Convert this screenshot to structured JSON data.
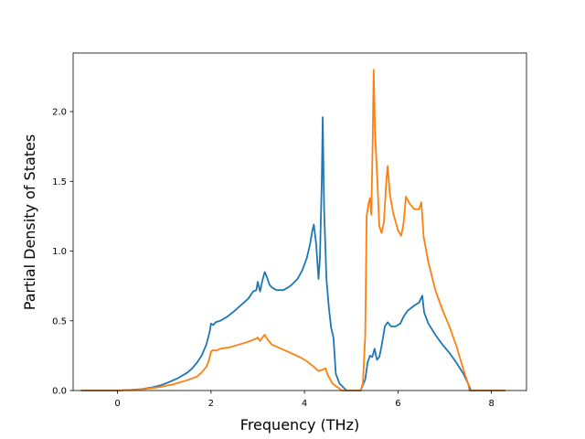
{
  "chart_data": {
    "type": "line",
    "title": "",
    "xlabel": "Frequency (THz)",
    "ylabel": "Partial Density of States",
    "xlim": [
      -0.95,
      8.75
    ],
    "ylim": [
      0.0,
      2.42
    ],
    "xticks": [
      0,
      2,
      4,
      6,
      8
    ],
    "yticks": [
      0.0,
      0.5,
      1.0,
      1.5,
      2.0
    ],
    "xtick_labels": [
      "0",
      "2",
      "4",
      "6",
      "8"
    ],
    "ytick_labels": [
      "0.0",
      "0.5",
      "1.0",
      "1.5",
      "2.0"
    ],
    "grid": false,
    "legend": false,
    "series": [
      {
        "color": "#1f77b4",
        "points": [
          [
            -0.78,
            0.0
          ],
          [
            0.0,
            0.0
          ],
          [
            0.3,
            0.005
          ],
          [
            0.5,
            0.01
          ],
          [
            0.7,
            0.02
          ],
          [
            0.9,
            0.035
          ],
          [
            1.1,
            0.06
          ],
          [
            1.3,
            0.09
          ],
          [
            1.5,
            0.13
          ],
          [
            1.6,
            0.16
          ],
          [
            1.7,
            0.2
          ],
          [
            1.8,
            0.25
          ],
          [
            1.9,
            0.33
          ],
          [
            1.97,
            0.42
          ],
          [
            2.0,
            0.48
          ],
          [
            2.05,
            0.47
          ],
          [
            2.1,
            0.49
          ],
          [
            2.2,
            0.5
          ],
          [
            2.35,
            0.53
          ],
          [
            2.5,
            0.57
          ],
          [
            2.6,
            0.6
          ],
          [
            2.7,
            0.63
          ],
          [
            2.8,
            0.66
          ],
          [
            2.9,
            0.71
          ],
          [
            2.97,
            0.72
          ],
          [
            3.0,
            0.78
          ],
          [
            3.05,
            0.71
          ],
          [
            3.1,
            0.79
          ],
          [
            3.15,
            0.85
          ],
          [
            3.2,
            0.81
          ],
          [
            3.25,
            0.76
          ],
          [
            3.3,
            0.74
          ],
          [
            3.4,
            0.72
          ],
          [
            3.55,
            0.72
          ],
          [
            3.7,
            0.75
          ],
          [
            3.85,
            0.8
          ],
          [
            3.95,
            0.86
          ],
          [
            4.05,
            0.95
          ],
          [
            4.12,
            1.05
          ],
          [
            4.17,
            1.15
          ],
          [
            4.2,
            1.19
          ],
          [
            4.25,
            1.05
          ],
          [
            4.3,
            0.8
          ],
          [
            4.33,
            0.95
          ],
          [
            4.37,
            1.5
          ],
          [
            4.39,
            1.96
          ],
          [
            4.42,
            1.3
          ],
          [
            4.47,
            0.8
          ],
          [
            4.52,
            0.6
          ],
          [
            4.57,
            0.45
          ],
          [
            4.62,
            0.38
          ],
          [
            4.67,
            0.12
          ],
          [
            4.75,
            0.05
          ],
          [
            4.9,
            0.0
          ],
          [
            5.2,
            0.0
          ],
          [
            5.3,
            0.08
          ],
          [
            5.35,
            0.2
          ],
          [
            5.4,
            0.25
          ],
          [
            5.45,
            0.24
          ],
          [
            5.5,
            0.3
          ],
          [
            5.55,
            0.22
          ],
          [
            5.6,
            0.24
          ],
          [
            5.65,
            0.32
          ],
          [
            5.72,
            0.46
          ],
          [
            5.78,
            0.49
          ],
          [
            5.85,
            0.46
          ],
          [
            5.95,
            0.46
          ],
          [
            6.05,
            0.48
          ],
          [
            6.12,
            0.53
          ],
          [
            6.2,
            0.57
          ],
          [
            6.35,
            0.61
          ],
          [
            6.45,
            0.63
          ],
          [
            6.52,
            0.68
          ],
          [
            6.56,
            0.56
          ],
          [
            6.65,
            0.48
          ],
          [
            6.8,
            0.4
          ],
          [
            6.95,
            0.33
          ],
          [
            7.1,
            0.27
          ],
          [
            7.25,
            0.2
          ],
          [
            7.4,
            0.12
          ],
          [
            7.5,
            0.05
          ],
          [
            7.56,
            0.0
          ],
          [
            8.3,
            0.0
          ]
        ]
      },
      {
        "color": "#ff7f0e",
        "points": [
          [
            -0.78,
            0.0
          ],
          [
            0.0,
            0.0
          ],
          [
            0.3,
            0.004
          ],
          [
            0.6,
            0.012
          ],
          [
            0.9,
            0.025
          ],
          [
            1.2,
            0.045
          ],
          [
            1.5,
            0.075
          ],
          [
            1.7,
            0.1
          ],
          [
            1.8,
            0.13
          ],
          [
            1.9,
            0.17
          ],
          [
            1.95,
            0.21
          ],
          [
            2.0,
            0.28
          ],
          [
            2.05,
            0.29
          ],
          [
            2.1,
            0.285
          ],
          [
            2.2,
            0.3
          ],
          [
            2.4,
            0.31
          ],
          [
            2.6,
            0.33
          ],
          [
            2.8,
            0.35
          ],
          [
            2.95,
            0.37
          ],
          [
            3.0,
            0.38
          ],
          [
            3.05,
            0.355
          ],
          [
            3.1,
            0.38
          ],
          [
            3.15,
            0.4
          ],
          [
            3.2,
            0.37
          ],
          [
            3.3,
            0.33
          ],
          [
            3.5,
            0.3
          ],
          [
            3.7,
            0.27
          ],
          [
            3.9,
            0.24
          ],
          [
            4.05,
            0.21
          ],
          [
            4.2,
            0.17
          ],
          [
            4.3,
            0.14
          ],
          [
            4.4,
            0.15
          ],
          [
            4.45,
            0.16
          ],
          [
            4.5,
            0.11
          ],
          [
            4.6,
            0.05
          ],
          [
            4.8,
            0.0
          ],
          [
            5.2,
            0.0
          ],
          [
            5.25,
            0.05
          ],
          [
            5.3,
            0.4
          ],
          [
            5.33,
            1.25
          ],
          [
            5.37,
            1.34
          ],
          [
            5.4,
            1.38
          ],
          [
            5.43,
            1.26
          ],
          [
            5.46,
            1.8
          ],
          [
            5.48,
            2.3
          ],
          [
            5.51,
            1.85
          ],
          [
            5.56,
            1.5
          ],
          [
            5.6,
            1.18
          ],
          [
            5.65,
            1.13
          ],
          [
            5.7,
            1.21
          ],
          [
            5.75,
            1.5
          ],
          [
            5.78,
            1.61
          ],
          [
            5.83,
            1.4
          ],
          [
            5.9,
            1.27
          ],
          [
            6.0,
            1.15
          ],
          [
            6.07,
            1.11
          ],
          [
            6.12,
            1.2
          ],
          [
            6.17,
            1.39
          ],
          [
            6.25,
            1.34
          ],
          [
            6.35,
            1.3
          ],
          [
            6.45,
            1.3
          ],
          [
            6.5,
            1.35
          ],
          [
            6.55,
            1.1
          ],
          [
            6.65,
            0.92
          ],
          [
            6.8,
            0.72
          ],
          [
            6.95,
            0.58
          ],
          [
            7.1,
            0.46
          ],
          [
            7.25,
            0.32
          ],
          [
            7.4,
            0.15
          ],
          [
            7.5,
            0.05
          ],
          [
            7.53,
            0.0
          ],
          [
            8.3,
            0.0
          ]
        ]
      }
    ]
  }
}
